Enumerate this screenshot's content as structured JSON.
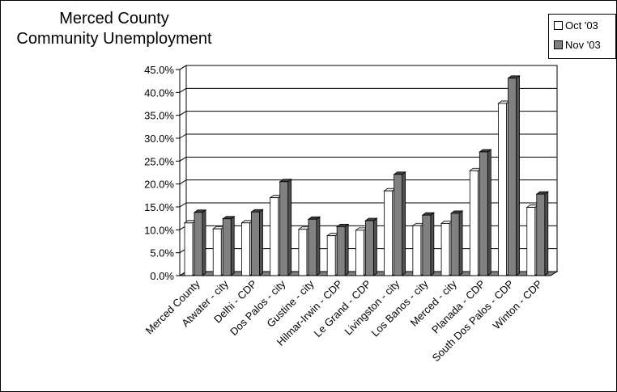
{
  "chart_data": {
    "type": "bar",
    "title_lines": [
      "Merced County",
      "Community Unemployment"
    ],
    "categories": [
      "Merced County",
      "Atwater - city",
      "Delhi - CDP",
      "Dos Palos - city",
      "Gustine - city",
      "Hilmar-Irwin - CDP",
      "Le Grand - CDP",
      "Livingston - city",
      "Los Banos - city",
      "Merced - city",
      "Planada - CDP",
      "South Dos Palos - CDP",
      "Winton - CDP"
    ],
    "series": [
      {
        "name": "Oct '03",
        "color": "#ffffff",
        "values": [
          11.5,
          10.2,
          11.5,
          17.0,
          10.1,
          8.7,
          9.9,
          18.5,
          10.9,
          11.4,
          22.9,
          37.6,
          14.9
        ]
      },
      {
        "name": "Nov '03",
        "color": "#808080",
        "values": [
          13.8,
          12.4,
          13.9,
          20.5,
          12.3,
          10.7,
          12.0,
          22.1,
          13.2,
          13.6,
          27.0,
          43.1,
          17.8
        ]
      }
    ],
    "y_ticks": [
      "0.0%",
      "5.0%",
      "10.0%",
      "15.0%",
      "20.0%",
      "25.0%",
      "30.0%",
      "35.0%",
      "40.0%",
      "45.0%"
    ],
    "ylim": [
      0,
      45
    ],
    "grid": true,
    "legend": "top-right"
  }
}
